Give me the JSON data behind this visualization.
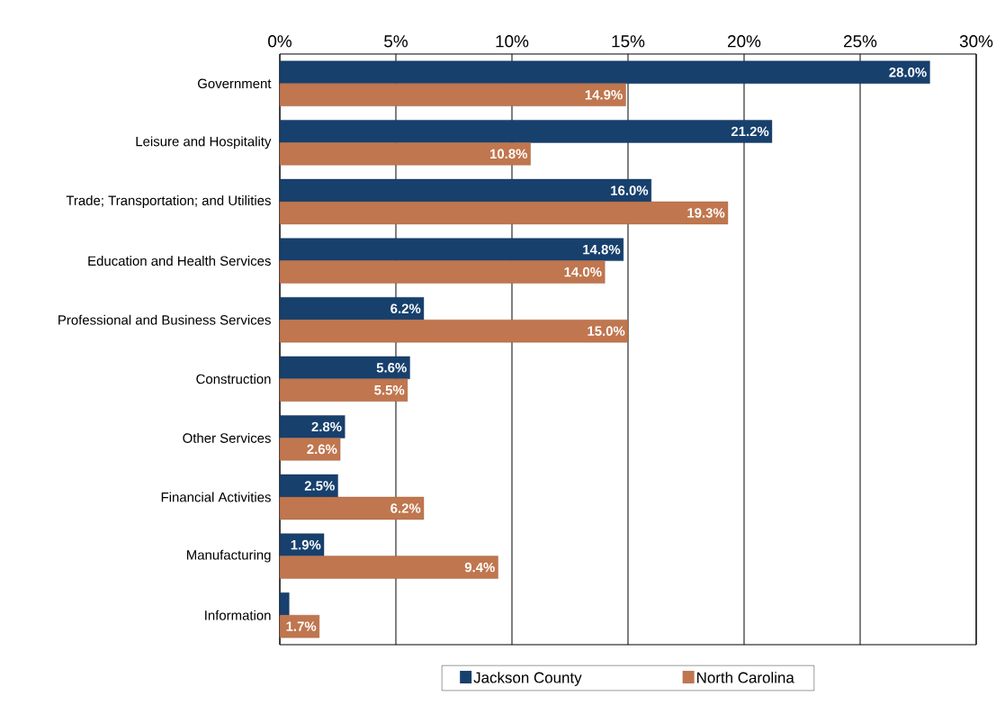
{
  "chart_data": {
    "type": "bar",
    "orientation": "horizontal",
    "categories": [
      "Government",
      "Leisure and Hospitality",
      "Trade; Transportation; and Utilities",
      "Education and Health Services",
      "Professional and Business Services",
      "Construction",
      "Other Services",
      "Financial Activities",
      "Manufacturing",
      "Information"
    ],
    "series": [
      {
        "name": "Jackson County",
        "color": "#17406d",
        "values": [
          28.0,
          21.2,
          16.0,
          14.8,
          6.2,
          5.6,
          2.8,
          2.5,
          1.9,
          0.4
        ],
        "value_labels": [
          "28.0%",
          "21.2%",
          "16.0%",
          "14.8%",
          "6.2%",
          "5.6%",
          "2.8%",
          "2.5%",
          "1.9%",
          null
        ]
      },
      {
        "name": "North Carolina",
        "color": "#c0764e",
        "values": [
          14.9,
          10.8,
          19.3,
          14.0,
          15.0,
          5.5,
          2.6,
          6.2,
          9.4,
          1.7
        ],
        "value_labels": [
          "14.9%",
          "10.8%",
          "19.3%",
          "14.0%",
          "15.0%",
          "5.5%",
          "2.6%",
          "6.2%",
          "9.4%",
          "1.7%"
        ]
      }
    ],
    "xlim": [
      0,
      30
    ],
    "xticks": [
      {
        "value": 0,
        "label": "0%"
      },
      {
        "value": 5,
        "label": "5%"
      },
      {
        "value": 10,
        "label": "10%"
      },
      {
        "value": 15,
        "label": "15%"
      },
      {
        "value": 20,
        "label": "20%"
      },
      {
        "value": 25,
        "label": "25%"
      },
      {
        "value": 30,
        "label": "30%"
      }
    ],
    "grid": "x",
    "legend": "bottom"
  }
}
